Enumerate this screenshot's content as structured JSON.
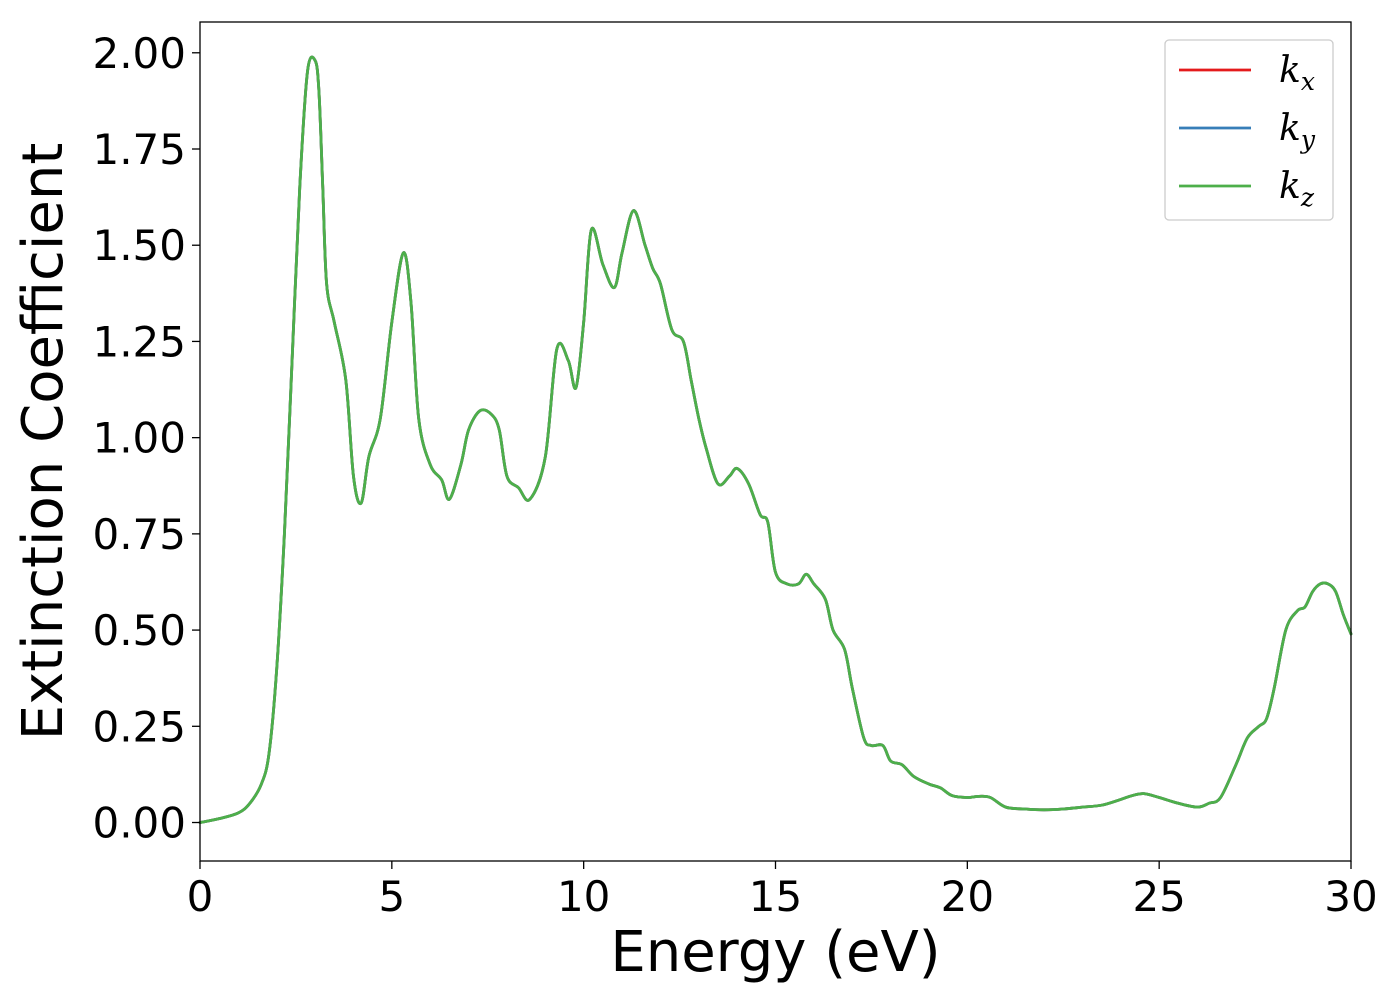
{
  "chart_data": {
    "type": "line",
    "title": "",
    "xlabel": "Energy (eV)",
    "ylabel": "Extinction Coefficient",
    "xlim": [
      0,
      30
    ],
    "ylim": [
      -0.1,
      2.08
    ],
    "x_ticks": [
      0,
      5,
      10,
      15,
      20,
      25,
      30
    ],
    "x_tick_labels": [
      "0",
      "5",
      "10",
      "15",
      "20",
      "25",
      "30"
    ],
    "y_ticks": [
      0,
      0.25,
      0.5,
      0.75,
      1.0,
      1.25,
      1.5,
      1.75,
      2.0
    ],
    "y_tick_labels": [
      "0.00",
      "0.25",
      "0.50",
      "0.75",
      "1.00",
      "1.25",
      "1.50",
      "1.75",
      "2.00"
    ],
    "grid": false,
    "legend_position": "top-right",
    "series": [
      {
        "name": "k",
        "subscript": "x",
        "color": "#e41a1c",
        "x": [
          0,
          0.5,
          1.0,
          1.3,
          1.6,
          1.8,
          2.0,
          2.2,
          2.4,
          2.6,
          2.8,
          3.0,
          3.1,
          3.2,
          3.3,
          3.5,
          3.8,
          4.0,
          4.2,
          4.4,
          4.7,
          5.0,
          5.3,
          5.5,
          5.7,
          6.0,
          6.3,
          6.5,
          6.8,
          7.0,
          7.3,
          7.6,
          7.8,
          8.0,
          8.3,
          8.6,
          9.0,
          9.3,
          9.6,
          9.8,
          10.0,
          10.2,
          10.5,
          10.8,
          11.0,
          11.3,
          11.6,
          11.8,
          12.0,
          12.3,
          12.6,
          12.8,
          13.0,
          13.2,
          13.5,
          13.8,
          14.0,
          14.3,
          14.6,
          14.8,
          15.0,
          15.3,
          15.6,
          15.8,
          16.0,
          16.3,
          16.5,
          16.8,
          17.0,
          17.3,
          17.5,
          17.8,
          18.0,
          18.3,
          18.6,
          19.0,
          19.3,
          19.6,
          20.0,
          20.3,
          20.6,
          21.0,
          21.5,
          22.0,
          22.5,
          23.0,
          23.5,
          24.0,
          24.3,
          24.6,
          25.0,
          25.5,
          26.0,
          26.3,
          26.6,
          27.0,
          27.3,
          27.6,
          27.8,
          28.0,
          28.3,
          28.6,
          28.8,
          29.0,
          29.2,
          29.4,
          29.6,
          29.8,
          30.0
        ],
        "y": [
          0.0,
          0.01,
          0.025,
          0.05,
          0.1,
          0.18,
          0.4,
          0.75,
          1.2,
          1.65,
          1.95,
          1.98,
          1.9,
          1.65,
          1.4,
          1.3,
          1.15,
          0.9,
          0.83,
          0.95,
          1.05,
          1.3,
          1.48,
          1.35,
          1.05,
          0.93,
          0.89,
          0.84,
          0.93,
          1.02,
          1.07,
          1.06,
          1.02,
          0.9,
          0.87,
          0.84,
          0.95,
          1.23,
          1.2,
          1.13,
          1.3,
          1.54,
          1.45,
          1.39,
          1.48,
          1.59,
          1.5,
          1.44,
          1.4,
          1.28,
          1.25,
          1.15,
          1.05,
          0.97,
          0.88,
          0.9,
          0.92,
          0.88,
          0.8,
          0.78,
          0.65,
          0.62,
          0.62,
          0.645,
          0.62,
          0.58,
          0.5,
          0.45,
          0.35,
          0.22,
          0.2,
          0.2,
          0.16,
          0.15,
          0.12,
          0.1,
          0.09,
          0.07,
          0.065,
          0.068,
          0.065,
          0.04,
          0.035,
          0.033,
          0.035,
          0.04,
          0.045,
          0.06,
          0.07,
          0.075,
          0.065,
          0.05,
          0.04,
          0.05,
          0.065,
          0.15,
          0.22,
          0.25,
          0.27,
          0.35,
          0.5,
          0.55,
          0.56,
          0.6,
          0.62,
          0.62,
          0.6,
          0.54,
          0.49
        ]
      },
      {
        "name": "k",
        "subscript": "y",
        "color": "#377eb8",
        "x": [
          0,
          0.5,
          1.0,
          1.3,
          1.6,
          1.8,
          2.0,
          2.2,
          2.4,
          2.6,
          2.8,
          3.0,
          3.1,
          3.2,
          3.3,
          3.5,
          3.8,
          4.0,
          4.2,
          4.4,
          4.7,
          5.0,
          5.3,
          5.5,
          5.7,
          6.0,
          6.3,
          6.5,
          6.8,
          7.0,
          7.3,
          7.6,
          7.8,
          8.0,
          8.3,
          8.6,
          9.0,
          9.3,
          9.6,
          9.8,
          10.0,
          10.2,
          10.5,
          10.8,
          11.0,
          11.3,
          11.6,
          11.8,
          12.0,
          12.3,
          12.6,
          12.8,
          13.0,
          13.2,
          13.5,
          13.8,
          14.0,
          14.3,
          14.6,
          14.8,
          15.0,
          15.3,
          15.6,
          15.8,
          16.0,
          16.3,
          16.5,
          16.8,
          17.0,
          17.3,
          17.5,
          17.8,
          18.0,
          18.3,
          18.6,
          19.0,
          19.3,
          19.6,
          20.0,
          20.3,
          20.6,
          21.0,
          21.5,
          22.0,
          22.5,
          23.0,
          23.5,
          24.0,
          24.3,
          24.6,
          25.0,
          25.5,
          26.0,
          26.3,
          26.6,
          27.0,
          27.3,
          27.6,
          27.8,
          28.0,
          28.3,
          28.6,
          28.8,
          29.0,
          29.2,
          29.4,
          29.6,
          29.8,
          30.0
        ],
        "y": [
          0.0,
          0.01,
          0.025,
          0.05,
          0.1,
          0.18,
          0.4,
          0.75,
          1.2,
          1.65,
          1.95,
          1.98,
          1.9,
          1.65,
          1.4,
          1.3,
          1.15,
          0.9,
          0.83,
          0.95,
          1.05,
          1.3,
          1.48,
          1.35,
          1.05,
          0.93,
          0.89,
          0.84,
          0.93,
          1.02,
          1.07,
          1.06,
          1.02,
          0.9,
          0.87,
          0.84,
          0.95,
          1.23,
          1.2,
          1.13,
          1.3,
          1.54,
          1.45,
          1.39,
          1.48,
          1.59,
          1.5,
          1.44,
          1.4,
          1.28,
          1.25,
          1.15,
          1.05,
          0.97,
          0.88,
          0.9,
          0.92,
          0.88,
          0.8,
          0.78,
          0.65,
          0.62,
          0.62,
          0.645,
          0.62,
          0.58,
          0.5,
          0.45,
          0.35,
          0.22,
          0.2,
          0.2,
          0.16,
          0.15,
          0.12,
          0.1,
          0.09,
          0.07,
          0.065,
          0.068,
          0.065,
          0.04,
          0.035,
          0.033,
          0.035,
          0.04,
          0.045,
          0.06,
          0.07,
          0.075,
          0.065,
          0.05,
          0.04,
          0.05,
          0.065,
          0.15,
          0.22,
          0.25,
          0.27,
          0.35,
          0.5,
          0.55,
          0.56,
          0.6,
          0.62,
          0.62,
          0.6,
          0.54,
          0.49
        ]
      },
      {
        "name": "k",
        "subscript": "z",
        "color": "#4daf4a",
        "x": [
          0,
          0.5,
          1.0,
          1.3,
          1.6,
          1.8,
          2.0,
          2.2,
          2.4,
          2.6,
          2.8,
          3.0,
          3.1,
          3.2,
          3.3,
          3.5,
          3.8,
          4.0,
          4.2,
          4.4,
          4.7,
          5.0,
          5.3,
          5.5,
          5.7,
          6.0,
          6.3,
          6.5,
          6.8,
          7.0,
          7.3,
          7.6,
          7.8,
          8.0,
          8.3,
          8.6,
          9.0,
          9.3,
          9.6,
          9.8,
          10.0,
          10.2,
          10.5,
          10.8,
          11.0,
          11.3,
          11.6,
          11.8,
          12.0,
          12.3,
          12.6,
          12.8,
          13.0,
          13.2,
          13.5,
          13.8,
          14.0,
          14.3,
          14.6,
          14.8,
          15.0,
          15.3,
          15.6,
          15.8,
          16.0,
          16.3,
          16.5,
          16.8,
          17.0,
          17.3,
          17.5,
          17.8,
          18.0,
          18.3,
          18.6,
          19.0,
          19.3,
          19.6,
          20.0,
          20.3,
          20.6,
          21.0,
          21.5,
          22.0,
          22.5,
          23.0,
          23.5,
          24.0,
          24.3,
          24.6,
          25.0,
          25.5,
          26.0,
          26.3,
          26.6,
          27.0,
          27.3,
          27.6,
          27.8,
          28.0,
          28.3,
          28.6,
          28.8,
          29.0,
          29.2,
          29.4,
          29.6,
          29.8,
          30.0
        ],
        "y": [
          0.0,
          0.01,
          0.025,
          0.05,
          0.1,
          0.18,
          0.4,
          0.75,
          1.2,
          1.65,
          1.95,
          1.98,
          1.9,
          1.65,
          1.4,
          1.3,
          1.15,
          0.9,
          0.83,
          0.95,
          1.05,
          1.3,
          1.48,
          1.35,
          1.05,
          0.93,
          0.89,
          0.84,
          0.93,
          1.02,
          1.07,
          1.06,
          1.02,
          0.9,
          0.87,
          0.84,
          0.95,
          1.23,
          1.2,
          1.13,
          1.3,
          1.54,
          1.45,
          1.39,
          1.48,
          1.59,
          1.5,
          1.44,
          1.4,
          1.28,
          1.25,
          1.15,
          1.05,
          0.97,
          0.88,
          0.9,
          0.92,
          0.88,
          0.8,
          0.78,
          0.65,
          0.62,
          0.62,
          0.645,
          0.62,
          0.58,
          0.5,
          0.45,
          0.35,
          0.22,
          0.2,
          0.2,
          0.16,
          0.15,
          0.12,
          0.1,
          0.09,
          0.07,
          0.065,
          0.068,
          0.065,
          0.04,
          0.035,
          0.033,
          0.035,
          0.04,
          0.045,
          0.06,
          0.07,
          0.075,
          0.065,
          0.05,
          0.04,
          0.05,
          0.065,
          0.15,
          0.22,
          0.25,
          0.27,
          0.35,
          0.5,
          0.55,
          0.56,
          0.6,
          0.62,
          0.62,
          0.6,
          0.54,
          0.49
        ]
      }
    ]
  }
}
